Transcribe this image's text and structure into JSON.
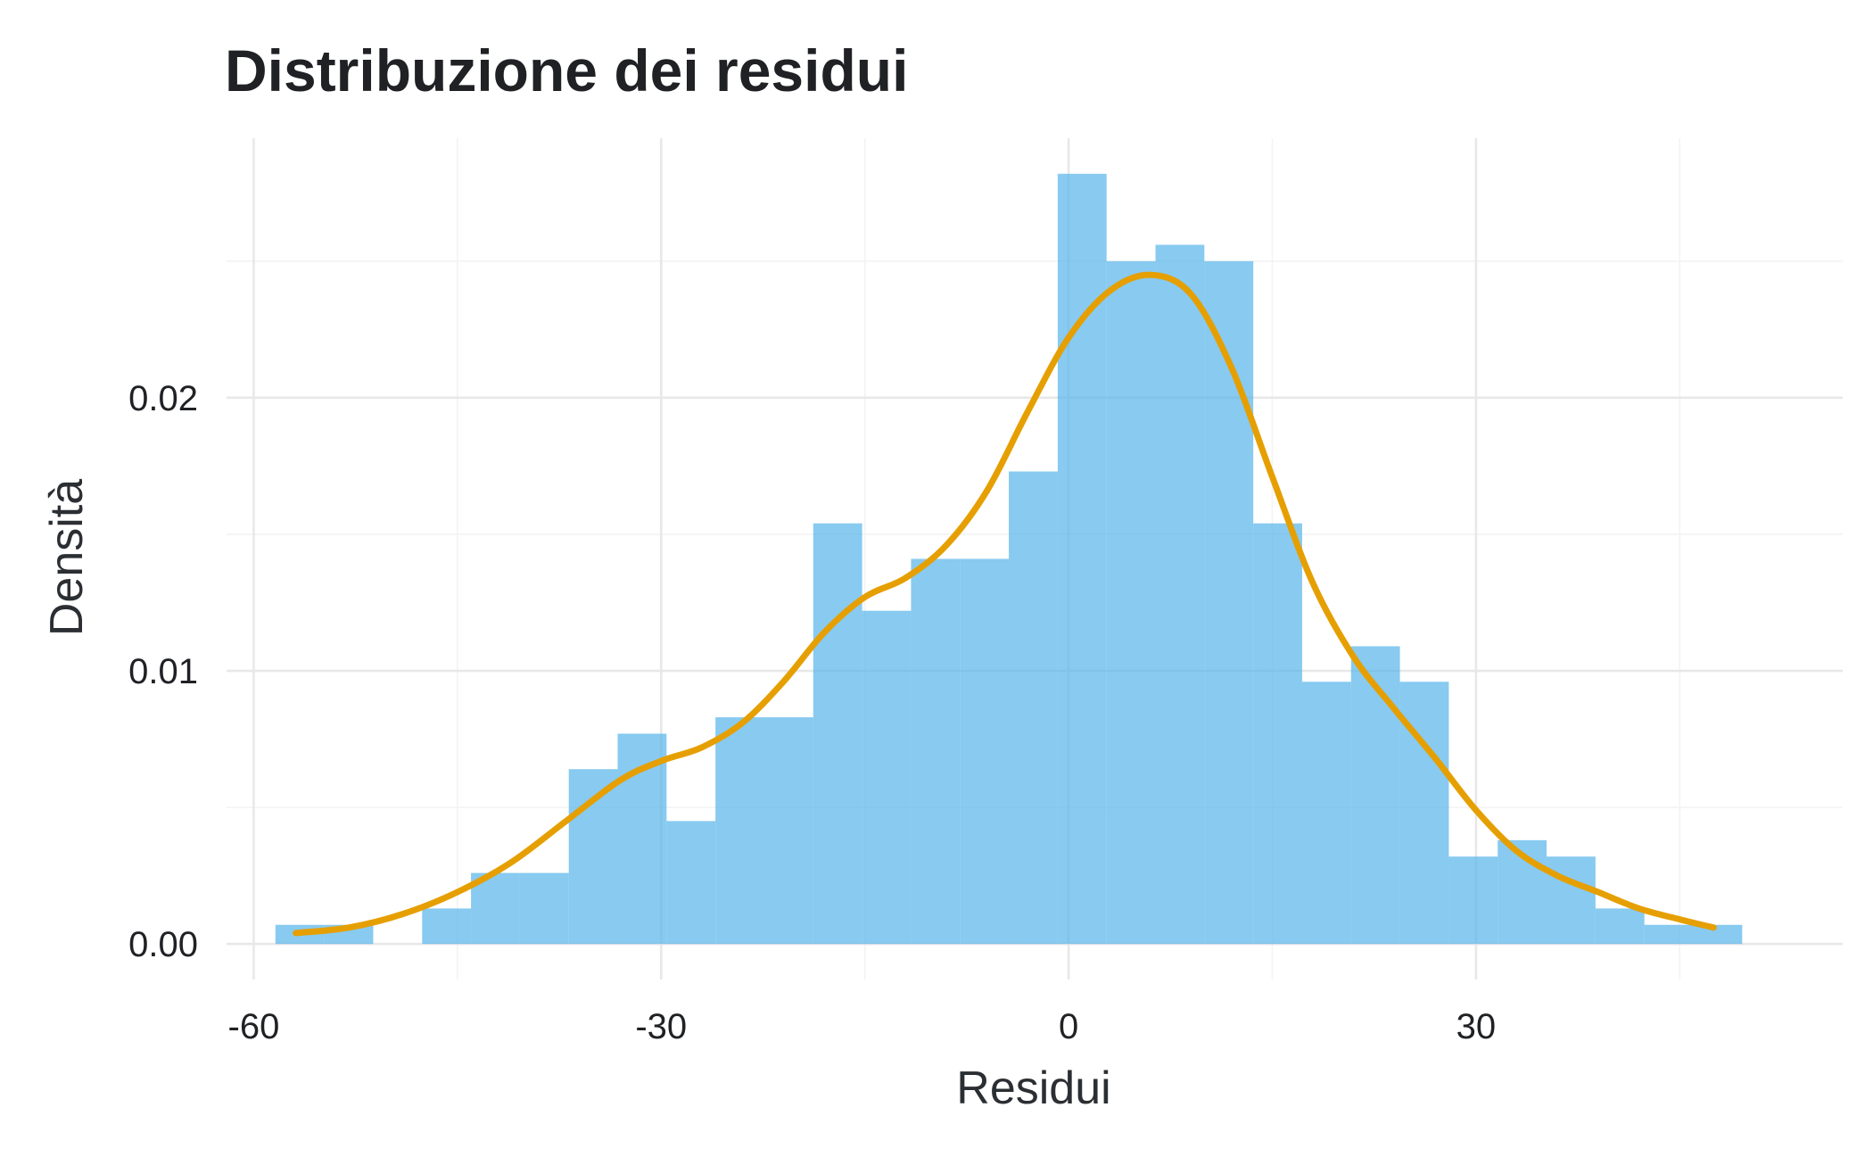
{
  "chart_data": {
    "type": "histogram",
    "title": "Distribuzione dei residui",
    "xlabel": "Residui",
    "ylabel": "Densità",
    "xlim": [
      -62,
      57
    ],
    "ylim": [
      -0.0013,
      0.0295
    ],
    "x_ticks": [
      -60,
      -30,
      0,
      30
    ],
    "x_tick_labels": [
      "-60",
      "-30",
      "0",
      "30"
    ],
    "y_ticks": [
      0.0,
      0.01,
      0.02
    ],
    "y_tick_labels": [
      "0.00",
      "0.01",
      "0.02"
    ],
    "x_minor_ticks": [
      -45,
      -15,
      15,
      45
    ],
    "y_minor_ticks": [
      0.005,
      0.015,
      0.025
    ],
    "grid": true,
    "legend": "none",
    "bin_width": 3.6,
    "bins": [
      {
        "x0": -58.4,
        "x1": -54.8,
        "density": 0.0007
      },
      {
        "x0": -54.8,
        "x1": -51.2,
        "density": 0.0007
      },
      {
        "x0": -51.2,
        "x1": -47.6,
        "density": 0.0
      },
      {
        "x0": -47.6,
        "x1": -44.0,
        "density": 0.0013
      },
      {
        "x0": -44.0,
        "x1": -40.4,
        "density": 0.0026
      },
      {
        "x0": -40.4,
        "x1": -36.8,
        "density": 0.0026
      },
      {
        "x0": -36.8,
        "x1": -33.2,
        "density": 0.0064
      },
      {
        "x0": -33.2,
        "x1": -29.6,
        "density": 0.0077
      },
      {
        "x0": -29.6,
        "x1": -26.0,
        "density": 0.0045
      },
      {
        "x0": -26.0,
        "x1": -22.4,
        "density": 0.0083
      },
      {
        "x0": -22.4,
        "x1": -18.8,
        "density": 0.0083
      },
      {
        "x0": -18.8,
        "x1": -15.2,
        "density": 0.0154
      },
      {
        "x0": -15.2,
        "x1": -11.6,
        "density": 0.0122
      },
      {
        "x0": -11.6,
        "x1": -8.0,
        "density": 0.0141
      },
      {
        "x0": -8.0,
        "x1": -4.4,
        "density": 0.0141
      },
      {
        "x0": -4.4,
        "x1": -0.8,
        "density": 0.0173
      },
      {
        "x0": -0.8,
        "x1": 2.8,
        "density": 0.0282
      },
      {
        "x0": 2.8,
        "x1": 6.4,
        "density": 0.025
      },
      {
        "x0": 6.4,
        "x1": 10.0,
        "density": 0.0256
      },
      {
        "x0": 10.0,
        "x1": 13.6,
        "density": 0.025
      },
      {
        "x0": 13.6,
        "x1": 17.2,
        "density": 0.0154
      },
      {
        "x0": 17.2,
        "x1": 20.8,
        "density": 0.0096
      },
      {
        "x0": 20.8,
        "x1": 24.4,
        "density": 0.0109
      },
      {
        "x0": 24.4,
        "x1": 28.0,
        "density": 0.0096
      },
      {
        "x0": 28.0,
        "x1": 31.6,
        "density": 0.0032
      },
      {
        "x0": 31.6,
        "x1": 35.2,
        "density": 0.0038
      },
      {
        "x0": 35.2,
        "x1": 38.8,
        "density": 0.0032
      },
      {
        "x0": 38.8,
        "x1": 42.4,
        "density": 0.0013
      },
      {
        "x0": 42.4,
        "x1": 46.0,
        "density": 0.0007
      },
      {
        "x0": 46.0,
        "x1": 49.6,
        "density": 0.0007
      }
    ],
    "density_curve": {
      "x": [
        -56.9,
        -53.0,
        -49.0,
        -45.0,
        -41.0,
        -37.0,
        -33.0,
        -30.0,
        -27.0,
        -24.0,
        -21.0,
        -18.0,
        -15.0,
        -12.0,
        -9.0,
        -6.0,
        -3.0,
        0.0,
        3.0,
        6.0,
        9.0,
        12.0,
        15.0,
        18.0,
        21.0,
        24.0,
        27.0,
        30.0,
        33.0,
        36.0,
        39.0,
        42.0,
        45.0,
        47.5
      ],
      "y": [
        0.0004,
        0.0006,
        0.0011,
        0.0019,
        0.003,
        0.0045,
        0.006,
        0.0067,
        0.0072,
        0.0081,
        0.0096,
        0.0114,
        0.0127,
        0.0134,
        0.0146,
        0.0166,
        0.0195,
        0.0222,
        0.0239,
        0.0245,
        0.0238,
        0.0211,
        0.0171,
        0.0132,
        0.0105,
        0.0086,
        0.0068,
        0.0049,
        0.0034,
        0.0025,
        0.0019,
        0.0013,
        0.0009,
        0.0006
      ]
    },
    "colors": {
      "bars": "#56B4E9",
      "density_line": "#E69F00",
      "grid": "#e8e8e8",
      "text": "#1f2124"
    }
  }
}
